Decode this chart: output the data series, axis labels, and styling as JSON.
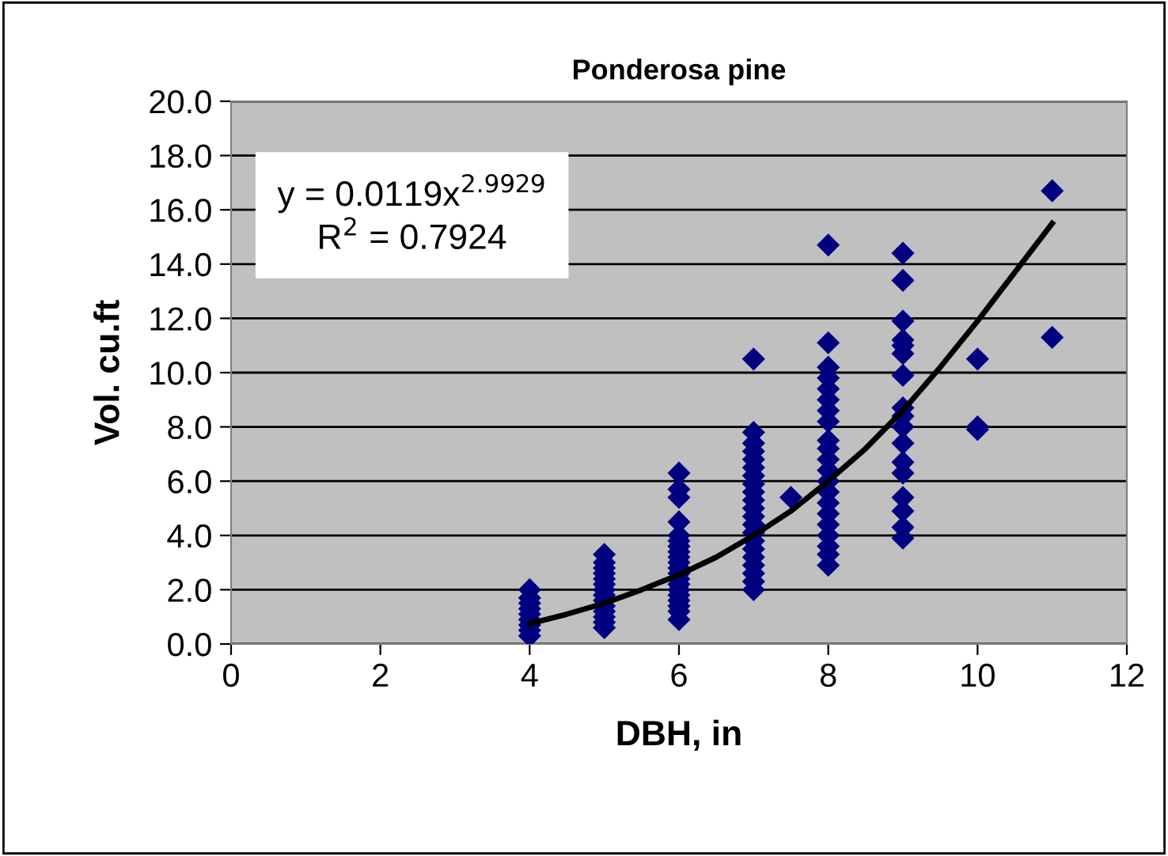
{
  "chart_data": {
    "type": "scatter",
    "title": "Ponderosa pine",
    "xlabel": "DBH, in",
    "ylabel": "Vol. cu.ft",
    "xlim": [
      0,
      12
    ],
    "xticks": [
      0,
      2,
      4,
      6,
      8,
      10,
      12
    ],
    "ylim": [
      0,
      20
    ],
    "yticks": [
      {
        "value": 0,
        "label": "0.0"
      },
      {
        "value": 2,
        "label": "2.0"
      },
      {
        "value": 4,
        "label": "4.0"
      },
      {
        "value": 6,
        "label": "6.0"
      },
      {
        "value": 8,
        "label": "8.0"
      },
      {
        "value": 10,
        "label": "10.0"
      },
      {
        "value": 12,
        "label": "12.0"
      },
      {
        "value": 14,
        "label": "14.0"
      },
      {
        "value": 16,
        "label": "16.0"
      },
      {
        "value": 18,
        "label": "18.0"
      },
      {
        "value": 20,
        "label": "20.0"
      }
    ],
    "grid": "y",
    "marker": "diamond",
    "annotations": [
      "y = 0.0119x$^{2.9929}$",
      "R$^{2}$ = 0.7924"
    ],
    "series": [
      {
        "color": "#000080",
        "x": [
          4,
          4,
          4,
          4,
          4,
          4,
          4,
          4,
          4,
          5,
          5,
          5,
          5,
          5,
          5,
          5,
          5,
          5,
          5,
          5,
          5,
          5,
          5,
          6,
          6,
          6,
          6,
          6,
          6,
          6,
          6,
          6,
          6,
          6,
          6,
          6,
          6,
          6,
          6,
          6,
          6,
          6,
          6,
          7,
          7,
          7,
          7,
          7,
          7,
          7,
          7,
          7,
          7,
          7,
          7,
          7,
          7,
          7,
          7,
          7,
          7,
          7,
          7,
          7,
          7.5,
          8,
          8,
          8,
          8,
          8,
          8,
          8,
          8,
          8,
          8,
          8,
          8,
          8,
          8,
          8,
          8,
          8,
          8,
          8,
          8,
          8,
          9,
          9,
          9,
          9,
          9,
          9,
          9,
          9,
          9,
          9,
          9,
          9,
          9,
          9,
          9,
          9,
          9,
          10,
          10,
          10,
          11,
          11
        ],
        "values": [
          0.3,
          0.5,
          0.7,
          0.9,
          1.1,
          1.3,
          1.5,
          1.7,
          2.0,
          0.6,
          0.8,
          1.0,
          1.2,
          1.4,
          1.6,
          1.8,
          2.0,
          2.2,
          2.4,
          2.6,
          2.8,
          3.0,
          3.3,
          0.9,
          1.2,
          1.4,
          1.6,
          1.8,
          2.0,
          2.2,
          2.4,
          2.6,
          2.8,
          3.0,
          3.2,
          3.4,
          3.6,
          3.8,
          4.0,
          4.5,
          5.4,
          5.7,
          6.3,
          2.0,
          2.3,
          2.6,
          2.9,
          3.2,
          3.5,
          3.8,
          4.1,
          4.4,
          4.7,
          5.0,
          5.3,
          5.6,
          5.9,
          6.2,
          6.5,
          6.8,
          7.1,
          7.4,
          7.8,
          10.5,
          5.4,
          2.9,
          3.3,
          3.6,
          4.0,
          4.4,
          4.8,
          5.2,
          5.6,
          6.0,
          6.4,
          6.8,
          7.2,
          7.5,
          8.2,
          8.6,
          9.0,
          9.4,
          9.8,
          10.2,
          11.1,
          14.7,
          3.9,
          4.3,
          4.9,
          5.4,
          6.3,
          6.7,
          7.4,
          8.0,
          8.4,
          8.7,
          9.9,
          10.7,
          11.0,
          11.2,
          11.9,
          13.4,
          14.4,
          7.9,
          8.0,
          10.5,
          11.3,
          16.7
        ]
      },
      {
        "type": "line",
        "color": "#000000",
        "marker": "none",
        "line_style": "solid",
        "x": [
          4,
          4.5,
          5,
          5.5,
          6,
          6.5,
          7,
          7.5,
          8,
          8.5,
          9,
          9.5,
          10,
          10.5,
          11
        ],
        "values": [
          0.75,
          1.1,
          1.5,
          2.0,
          2.55,
          3.2,
          4.0,
          4.9,
          6.0,
          7.2,
          8.6,
          10.2,
          11.9,
          13.7,
          15.5
        ]
      }
    ]
  }
}
